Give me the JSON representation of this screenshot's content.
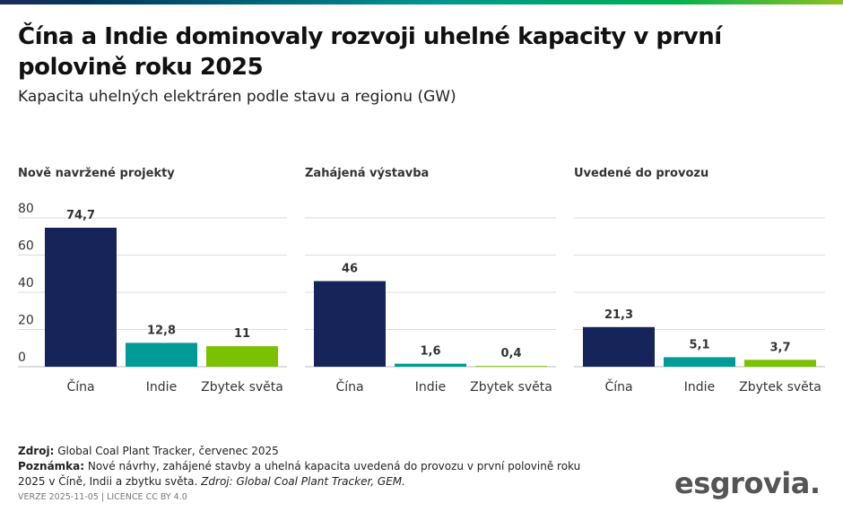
{
  "title": "Čína a Indie dominovaly rozvoji uhelné kapacity v první polovině roku 2025",
  "subtitle": "Kapacita uhelných elektráren podle stavu a regionu (GW)",
  "chart_data": [
    {
      "type": "bar",
      "title": "Nově navržené projekty",
      "categories": [
        "Čína",
        "Indie",
        "Zbytek světa"
      ],
      "values": [
        74.7,
        12.8,
        11
      ],
      "labels": [
        "74,7",
        "12,8",
        "11"
      ],
      "ylim": [
        0,
        80
      ],
      "yticks": [
        "0",
        "20",
        "40",
        "60",
        "80"
      ],
      "grid": true
    },
    {
      "type": "bar",
      "title": "Zahájená výstavba",
      "categories": [
        "Čína",
        "Indie",
        "Zbytek světa"
      ],
      "values": [
        46,
        1.6,
        0.4
      ],
      "labels": [
        "46",
        "1,6",
        "0,4"
      ],
      "ylim": [
        0,
        80
      ],
      "grid": true
    },
    {
      "type": "bar",
      "title": "Uvedené do provozu",
      "categories": [
        "Čína",
        "Indie",
        "Zbytek světa"
      ],
      "values": [
        21.3,
        5.1,
        3.7
      ],
      "labels": [
        "21,3",
        "5,1",
        "3,7"
      ],
      "ylim": [
        0,
        80
      ],
      "grid": true
    }
  ],
  "colors": [
    "#16245a",
    "#009b96",
    "#7ac100"
  ],
  "footer": {
    "source_label": "Zdroj:",
    "source": " Global Coal Plant Tracker, červenec 2025",
    "note_label": "Poznámka:",
    "note": " Nové návrhy, zahájené stavby a uhelná kapacita uvedená do provozu v první polovině roku 2025 v Číně, Indii a zbytku světa. ",
    "note_source": "Zdroj: Global Coal Plant Tracker, GEM.",
    "version": "VERZE 2025-11-05 | LICENCE CC BY 4.0"
  },
  "logo": "esgrovia."
}
